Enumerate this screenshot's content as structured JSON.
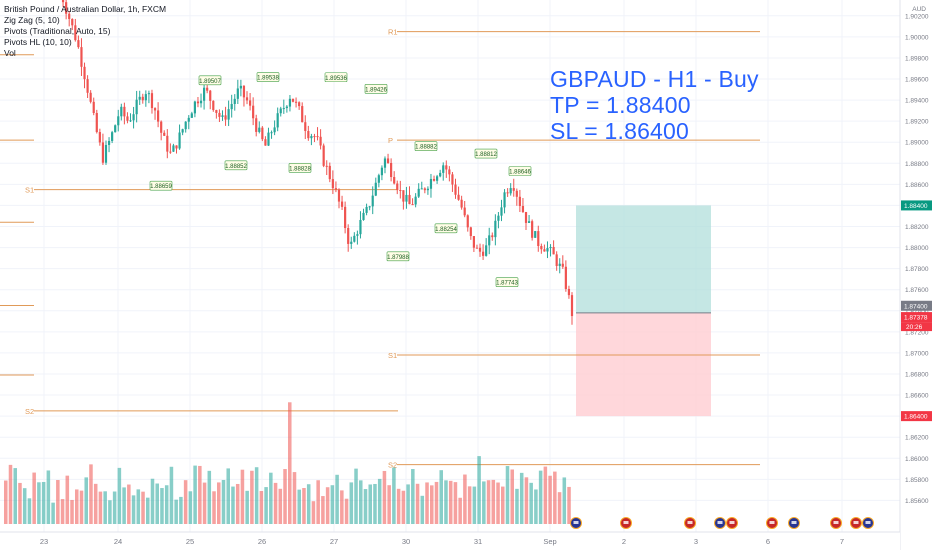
{
  "legend": {
    "title": "British Pound / Australian Dollar, 1h, FXCM",
    "indicators": [
      "Zig Zag (5, 10)",
      "Pivots (Traditional, Auto, 15)",
      "Pivots HL (10, 10)",
      "Vol"
    ]
  },
  "headline": {
    "line1": "GBPAUD - H1 - Buy",
    "line2": "TP = 1.88400",
    "line3": "SL = 1.86400"
  },
  "colors": {
    "up": "#26a69a",
    "down": "#ef5350",
    "pivot_line": "#e09a58",
    "headline": "#2962ff",
    "tp_zone": "#b2dfdb",
    "sl_zone": "#ffcdd2",
    "tp_badge": "#089981",
    "sl_badge": "#f23645",
    "price_badge": "#f23645",
    "prev_badge": "#787b86"
  },
  "chart_data": {
    "type": "candlestick",
    "symbol": "GBPAUD",
    "timeframe": "1h",
    "y_axis": {
      "unit": "AUD",
      "range": [
        1.853,
        1.9035
      ],
      "ticks": [
        "1.85600",
        "1.85800",
        "1.86000",
        "1.86200",
        "1.86400",
        "1.86600",
        "1.86800",
        "1.87000",
        "1.87200",
        "1.87400",
        "1.87600",
        "1.87800",
        "1.88000",
        "1.88200",
        "1.88400",
        "1.88600",
        "1.88800",
        "1.89000",
        "1.89200",
        "1.89400",
        "1.89600",
        "1.89800",
        "1.90000",
        "1.90200"
      ],
      "grid": true
    },
    "x_axis": {
      "ticks": [
        "23",
        "24",
        "25",
        "26",
        "27",
        "30",
        "31",
        "Sep",
        "2",
        "3",
        "6",
        "7"
      ]
    },
    "price_badges": [
      {
        "label": "1.88400",
        "value": 1.884,
        "kind": "tp"
      },
      {
        "label": "1.87400",
        "value": 1.874,
        "kind": "prev"
      },
      {
        "label": "1.87378",
        "value": 1.87378,
        "kind": "price"
      },
      {
        "label": "1.86400",
        "value": 1.864,
        "kind": "sl"
      }
    ],
    "countdown": "20:26",
    "position": {
      "entry": 1.8738,
      "take_profit": 1.884,
      "stop_loss": 1.864
    },
    "pivot_levels": [
      {
        "label": "R1",
        "value": 1.9005
      },
      {
        "label": "P",
        "value": 1.8902
      },
      {
        "label": "S1",
        "value": 1.8855
      },
      {
        "label": "S1",
        "value": 1.8698
      },
      {
        "label": "S2",
        "value": 1.8645
      },
      {
        "label": "S2",
        "value": 1.8594
      }
    ],
    "swing_labels": [
      {
        "text": "1.89507",
        "value": 1.89507
      },
      {
        "text": "1.89538",
        "value": 1.89538
      },
      {
        "text": "1.89536",
        "value": 1.89536
      },
      {
        "text": "1.89426",
        "value": 1.89426
      },
      {
        "text": "1.88659",
        "value": 1.88659
      },
      {
        "text": "1.88852",
        "value": 1.88852
      },
      {
        "text": "1.88828",
        "value": 1.88828
      },
      {
        "text": "1.88882",
        "value": 1.88882
      },
      {
        "text": "1.88812",
        "value": 1.88812
      },
      {
        "text": "1.88646",
        "value": 1.88646
      },
      {
        "text": "1.88254",
        "value": 1.88254
      },
      {
        "text": "1.87988",
        "value": 1.87988
      },
      {
        "text": "1.87743",
        "value": 1.87743
      }
    ],
    "close_path": [
      1.9045,
      1.902,
      1.8995,
      1.896,
      1.892,
      1.8885,
      1.8905,
      1.893,
      1.892,
      1.8935,
      1.895,
      1.8935,
      1.8905,
      1.8888,
      1.8905,
      1.8925,
      1.894,
      1.895,
      1.8935,
      1.892,
      1.8935,
      1.895,
      1.8938,
      1.8915,
      1.8895,
      1.8915,
      1.893,
      1.8945,
      1.893,
      1.891,
      1.8905,
      1.888,
      1.886,
      1.8835,
      1.88,
      1.882,
      1.8835,
      1.886,
      1.8885,
      1.887,
      1.885,
      1.884,
      1.885,
      1.886,
      1.887,
      1.888,
      1.886,
      1.884,
      1.881,
      1.8795,
      1.88,
      1.882,
      1.885,
      1.8864,
      1.884,
      1.882,
      1.8805,
      1.88,
      1.879,
      1.8775,
      1.8738
    ],
    "volume_profile": [
      3,
      5,
      4,
      3,
      3,
      2,
      4,
      3,
      3,
      4,
      2,
      3,
      2,
      4,
      2,
      3,
      3,
      4,
      5,
      3,
      3,
      3,
      2,
      3,
      4,
      3,
      3,
      2,
      3,
      3,
      2,
      4,
      3,
      3,
      3,
      4,
      2,
      2,
      3,
      3,
      4,
      5,
      3,
      4,
      3,
      3,
      4,
      4,
      3,
      3,
      4,
      3,
      4,
      5,
      3,
      3,
      4,
      3,
      3,
      5,
      10,
      4,
      3,
      3,
      3,
      2,
      3,
      2,
      3,
      3,
      4,
      3,
      2,
      3,
      4,
      4,
      3,
      3,
      3,
      4,
      5,
      3,
      4,
      3,
      3,
      3,
      4,
      3,
      2,
      3,
      3,
      3,
      4,
      4,
      3,
      3,
      2,
      4,
      3,
      3,
      5,
      4,
      3,
      4,
      3,
      3,
      4,
      5,
      3,
      4,
      4,
      3,
      3,
      4,
      5,
      4,
      4,
      3,
      4,
      3
    ]
  }
}
